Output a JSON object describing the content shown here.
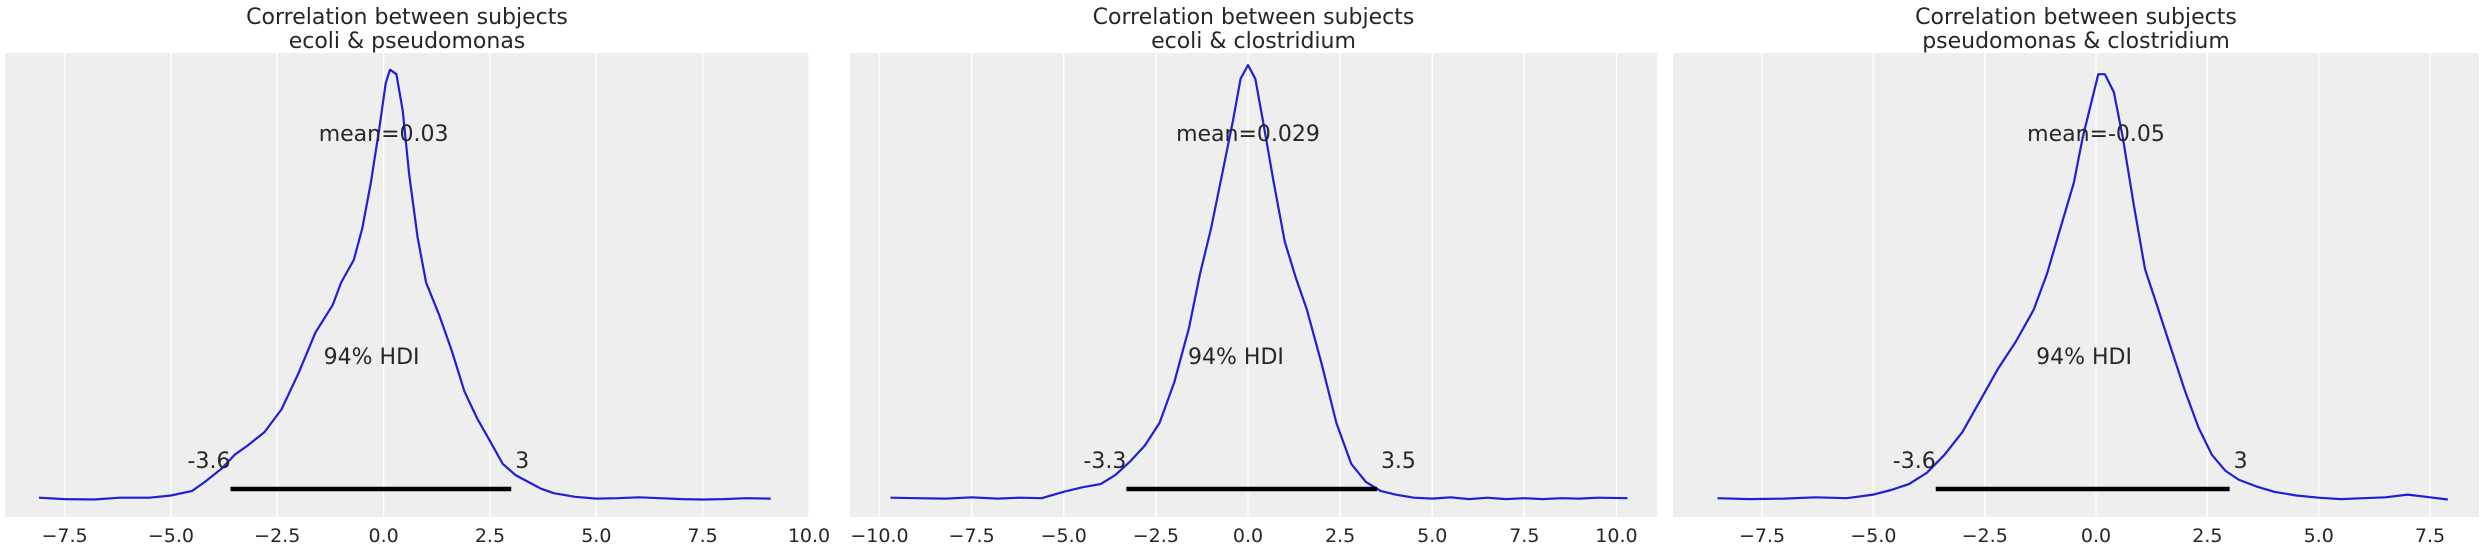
{
  "figure": {
    "background": "#ffffff",
    "panel_background": "#eeeeee",
    "grid_color": "#ffffff",
    "curve_color": "#1f1fd9",
    "hdi_color": "#000000"
  },
  "chart_data": [
    {
      "type": "line",
      "title": "Correlation between subjects\necoli & pseudomonas",
      "title_lines": [
        "Correlation between subjects",
        "ecoli & pseudomonas"
      ],
      "xlabel": "",
      "ylabel": "",
      "xlim": [
        -8.9,
        10.0
      ],
      "xticks": [
        -7.5,
        -5.0,
        -2.5,
        0.0,
        2.5,
        5.0,
        7.5,
        10.0
      ],
      "xtick_labels": [
        "−7.5",
        "−5.0",
        "−2.5",
        "0.0",
        "2.5",
        "5.0",
        "7.5",
        "10.0"
      ],
      "grid": "vertical",
      "y_axis_visible": false,
      "mean_label": "mean=0.03",
      "hdi": {
        "low": -3.6,
        "high": 3.0,
        "low_label": "-3.6",
        "high_label": "3",
        "prob_label": "94% HDI"
      },
      "series": [
        {
          "x": [
            -8.1,
            -7.5,
            -6.8,
            -6.2,
            -5.5,
            -5.0,
            -4.5,
            -4.2,
            -3.8,
            -3.5,
            -3.2,
            -2.8,
            -2.4,
            -2.0,
            -1.6,
            -1.2,
            -1.0,
            -0.7,
            -0.5,
            -0.3,
            -0.1,
            0.05,
            0.15,
            0.3,
            0.45,
            0.6,
            0.8,
            1.0,
            1.3,
            1.6,
            1.9,
            2.2,
            2.5,
            2.8,
            3.1,
            3.4,
            3.7,
            4.0,
            4.5,
            5.0,
            5.5,
            6.0,
            6.5,
            7.0,
            7.5,
            8.0,
            8.5,
            9.1
          ],
          "y": [
            0.005,
            0.002,
            0.001,
            0.005,
            0.005,
            0.01,
            0.02,
            0.04,
            0.07,
            0.1,
            0.12,
            0.15,
            0.2,
            0.28,
            0.37,
            0.43,
            0.48,
            0.53,
            0.6,
            0.7,
            0.82,
            0.92,
            0.95,
            0.94,
            0.86,
            0.72,
            0.58,
            0.48,
            0.41,
            0.33,
            0.24,
            0.18,
            0.13,
            0.08,
            0.055,
            0.04,
            0.025,
            0.015,
            0.007,
            0.003,
            0.004,
            0.006,
            0.004,
            0.002,
            0.001,
            0.002,
            0.004,
            0.003
          ]
        }
      ]
    },
    {
      "type": "line",
      "title": "Correlation between subjects\necoli & clostridium",
      "title_lines": [
        "Correlation between subjects",
        "ecoli & clostridium"
      ],
      "xlabel": "",
      "ylabel": "",
      "xlim": [
        -10.8,
        11.1
      ],
      "xticks": [
        -10.0,
        -7.5,
        -5.0,
        -2.5,
        0.0,
        2.5,
        5.0,
        7.5,
        10.0
      ],
      "xtick_labels": [
        "−10.0",
        "−7.5",
        "−5.0",
        "−2.5",
        "0.0",
        "2.5",
        "5.0",
        "7.5",
        "10.0"
      ],
      "grid": "vertical",
      "y_axis_visible": false,
      "mean_label": "mean=0.029",
      "hdi": {
        "low": -3.3,
        "high": 3.5,
        "low_label": "-3.3",
        "high_label": "3.5",
        "prob_label": "94% HDI"
      },
      "series": [
        {
          "x": [
            -9.7,
            -9.0,
            -8.2,
            -7.5,
            -6.8,
            -6.2,
            -5.6,
            -5.0,
            -4.5,
            -4.0,
            -3.6,
            -3.2,
            -2.8,
            -2.4,
            -2.0,
            -1.6,
            -1.3,
            -1.0,
            -0.7,
            -0.4,
            -0.2,
            0.0,
            0.2,
            0.4,
            0.7,
            1.0,
            1.3,
            1.6,
            2.0,
            2.4,
            2.8,
            3.2,
            3.6,
            4.0,
            4.5,
            5.0,
            5.5,
            6.0,
            6.5,
            7.0,
            7.5,
            8.0,
            8.5,
            9.0,
            9.5,
            10.3
          ],
          "y": [
            0.005,
            0.004,
            0.003,
            0.006,
            0.003,
            0.005,
            0.004,
            0.018,
            0.028,
            0.035,
            0.055,
            0.085,
            0.12,
            0.17,
            0.26,
            0.38,
            0.5,
            0.6,
            0.72,
            0.84,
            0.93,
            0.96,
            0.93,
            0.84,
            0.7,
            0.57,
            0.49,
            0.42,
            0.3,
            0.17,
            0.08,
            0.04,
            0.02,
            0.012,
            0.005,
            0.003,
            0.006,
            0.002,
            0.005,
            0.002,
            0.004,
            0.002,
            0.004,
            0.003,
            0.005,
            0.004
          ]
        }
      ]
    },
    {
      "type": "line",
      "title": "Correlation between subjects\npseudomonas & clostridium",
      "title_lines": [
        "Correlation between subjects",
        "pseudomonas & clostridium"
      ],
      "xlabel": "",
      "ylabel": "",
      "xlim": [
        -9.5,
        8.6
      ],
      "xticks": [
        -7.5,
        -5.0,
        -2.5,
        0.0,
        2.5,
        5.0,
        7.5
      ],
      "xtick_labels": [
        "−7.5",
        "−5.0",
        "−2.5",
        "0.0",
        "2.5",
        "5.0",
        "7.5"
      ],
      "grid": "vertical",
      "y_axis_visible": false,
      "mean_label": "mean=-0.05",
      "hdi": {
        "low": -3.6,
        "high": 3.0,
        "low_label": "-3.6",
        "high_label": "3",
        "prob_label": "94% HDI"
      },
      "series": [
        {
          "x": [
            -8.5,
            -7.8,
            -7.0,
            -6.3,
            -5.6,
            -5.0,
            -4.6,
            -4.2,
            -3.8,
            -3.4,
            -3.0,
            -2.6,
            -2.2,
            -1.8,
            -1.4,
            -1.1,
            -0.8,
            -0.5,
            -0.3,
            -0.1,
            0.05,
            0.2,
            0.4,
            0.6,
            0.85,
            1.1,
            1.4,
            1.7,
            2.0,
            2.3,
            2.6,
            2.9,
            3.2,
            3.6,
            4.0,
            4.5,
            5.0,
            5.5,
            6.0,
            6.5,
            7.0,
            7.5,
            7.9
          ],
          "y": [
            0.004,
            0.002,
            0.003,
            0.006,
            0.004,
            0.012,
            0.022,
            0.035,
            0.06,
            0.1,
            0.15,
            0.22,
            0.29,
            0.35,
            0.42,
            0.5,
            0.6,
            0.7,
            0.8,
            0.88,
            0.94,
            0.94,
            0.9,
            0.8,
            0.65,
            0.51,
            0.42,
            0.33,
            0.24,
            0.16,
            0.1,
            0.065,
            0.045,
            0.03,
            0.018,
            0.01,
            0.005,
            0.002,
            0.004,
            0.006,
            0.012,
            0.006,
            0.001
          ]
        }
      ]
    }
  ]
}
